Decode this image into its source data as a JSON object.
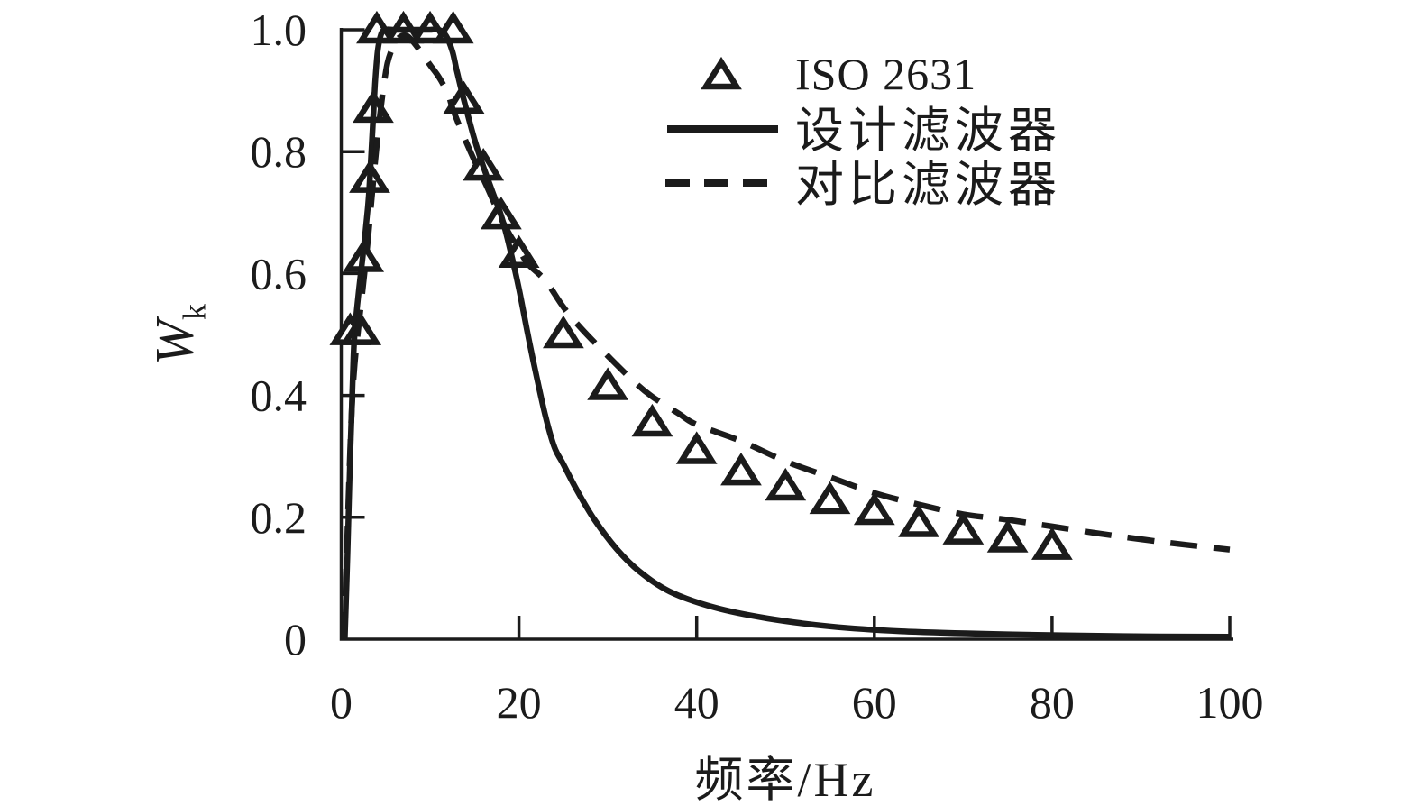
{
  "figure": {
    "background": "#ffffff",
    "ink_color": "#1b1b1b"
  },
  "axes": {
    "xlabel": "频率/Hz",
    "ylabel_base": "W",
    "ylabel_subscript": "k",
    "xlim": [
      0,
      100
    ],
    "ylim": [
      0,
      1.0
    ],
    "x_ticks": [
      0,
      20,
      40,
      60,
      80,
      100
    ],
    "x_tick_labels": [
      "0",
      "20",
      "40",
      "60",
      "80",
      "100"
    ],
    "y_ticks": [
      0,
      0.2,
      0.4,
      0.6,
      0.8,
      1.0
    ],
    "y_tick_labels": [
      "0",
      "0.2",
      "0.4",
      "0.6",
      "0.8",
      "1.0"
    ],
    "grid": false
  },
  "legend": {
    "position": "upper-right-inside",
    "items": [
      {
        "label": "ISO 2631",
        "swatch": "triangle-marker"
      },
      {
        "label": "设计滤波器",
        "swatch": "solid-line"
      },
      {
        "label": "对比滤波器",
        "swatch": "dashed-line"
      }
    ]
  },
  "chart_data": {
    "type": "line",
    "title": "",
    "xlabel": "频率/Hz",
    "ylabel": "Wk",
    "xlim": [
      0,
      100
    ],
    "ylim": [
      0,
      1.0
    ],
    "grid": false,
    "legend_position": "upper-right-inside",
    "series": [
      {
        "name": "ISO 2631",
        "plot": "scatter",
        "marker": "hollow-triangle-up",
        "color": "#1b1b1b",
        "points": [
          [
            1.0,
            0.505
          ],
          [
            2.2,
            0.505
          ],
          [
            2.5,
            0.625
          ],
          [
            3.2,
            0.755
          ],
          [
            3.6,
            0.87
          ],
          [
            4.0,
            1.0
          ],
          [
            7.0,
            1.0
          ],
          [
            10.0,
            1.0
          ],
          [
            12.6,
            1.0
          ],
          [
            13.8,
            0.885
          ],
          [
            16,
            0.775
          ],
          [
            18,
            0.695
          ],
          [
            20,
            0.632
          ],
          [
            25,
            0.5
          ],
          [
            30,
            0.415
          ],
          [
            35,
            0.355
          ],
          [
            40,
            0.31
          ],
          [
            45,
            0.275
          ],
          [
            50,
            0.25
          ],
          [
            55,
            0.228
          ],
          [
            60,
            0.21
          ],
          [
            65,
            0.19
          ],
          [
            70,
            0.178
          ],
          [
            75,
            0.165
          ],
          [
            80,
            0.153
          ]
        ]
      },
      {
        "name": "设计滤波器",
        "plot": "line",
        "style": "solid",
        "color": "#1b1b1b",
        "points": [
          [
            0.4,
            0
          ],
          [
            0.7,
            0.14
          ],
          [
            1.0,
            0.3
          ],
          [
            1.3,
            0.43
          ],
          [
            1.5,
            0.5
          ],
          [
            2.0,
            0.575
          ],
          [
            2.5,
            0.638
          ],
          [
            3.0,
            0.71
          ],
          [
            3.2,
            0.75
          ],
          [
            3.5,
            0.83
          ],
          [
            3.8,
            0.91
          ],
          [
            4.1,
            0.965
          ],
          [
            4.5,
            0.993
          ],
          [
            5,
            1.0
          ],
          [
            6,
            1.0
          ],
          [
            7,
            1.0
          ],
          [
            8,
            1.0
          ],
          [
            9,
            1.0
          ],
          [
            10,
            1.0
          ],
          [
            11,
            1.0
          ],
          [
            11.8,
            0.99
          ],
          [
            12.5,
            0.965
          ],
          [
            13,
            0.933
          ],
          [
            13.8,
            0.885
          ],
          [
            15,
            0.82
          ],
          [
            16,
            0.775
          ],
          [
            17,
            0.735
          ],
          [
            18,
            0.695
          ],
          [
            19,
            0.64
          ],
          [
            20,
            0.575
          ],
          [
            21,
            0.5
          ],
          [
            22,
            0.43
          ],
          [
            23,
            0.365
          ],
          [
            24,
            0.315
          ],
          [
            25,
            0.287
          ],
          [
            26.5,
            0.245
          ],
          [
            28.5,
            0.196
          ],
          [
            31,
            0.148
          ],
          [
            33.5,
            0.112
          ],
          [
            37,
            0.078
          ],
          [
            42,
            0.052
          ],
          [
            48,
            0.034
          ],
          [
            55,
            0.021
          ],
          [
            63,
            0.013
          ],
          [
            75,
            0.008
          ],
          [
            88,
            0.005
          ],
          [
            100,
            0.004
          ]
        ]
      },
      {
        "name": "对比滤波器",
        "plot": "line",
        "style": "dashed",
        "color": "#1b1b1b",
        "points": [
          [
            0.3,
            0
          ],
          [
            0.6,
            0.13
          ],
          [
            0.9,
            0.27
          ],
          [
            1.2,
            0.38
          ],
          [
            1.5,
            0.45
          ],
          [
            2.0,
            0.52
          ],
          [
            2.5,
            0.585
          ],
          [
            3.0,
            0.655
          ],
          [
            3.5,
            0.735
          ],
          [
            4.0,
            0.81
          ],
          [
            4.4,
            0.865
          ],
          [
            4.8,
            0.91
          ],
          [
            5.2,
            0.945
          ],
          [
            5.7,
            0.968
          ],
          [
            6.2,
            0.982
          ],
          [
            6.8,
            0.99
          ],
          [
            7.4,
            0.99
          ],
          [
            8,
            0.982
          ],
          [
            9,
            0.963
          ],
          [
            10,
            0.942
          ],
          [
            11,
            0.922
          ],
          [
            12,
            0.895
          ],
          [
            12.6,
            0.868
          ],
          [
            13.7,
            0.828
          ],
          [
            15,
            0.785
          ],
          [
            16,
            0.755
          ],
          [
            17,
            0.723
          ],
          [
            18,
            0.69
          ],
          [
            19,
            0.663
          ],
          [
            20,
            0.64
          ],
          [
            21,
            0.616
          ],
          [
            23,
            0.588
          ],
          [
            25,
            0.545
          ],
          [
            27,
            0.51
          ],
          [
            30,
            0.465
          ],
          [
            33,
            0.422
          ],
          [
            35,
            0.398
          ],
          [
            38,
            0.37
          ],
          [
            40,
            0.352
          ],
          [
            45,
            0.325
          ],
          [
            50,
            0.292
          ],
          [
            55,
            0.266
          ],
          [
            60,
            0.24
          ],
          [
            65,
            0.221
          ],
          [
            70,
            0.205
          ],
          [
            75,
            0.196
          ],
          [
            80,
            0.185
          ],
          [
            85,
            0.174
          ],
          [
            90,
            0.164
          ],
          [
            95,
            0.155
          ],
          [
            100,
            0.147
          ]
        ]
      }
    ]
  }
}
